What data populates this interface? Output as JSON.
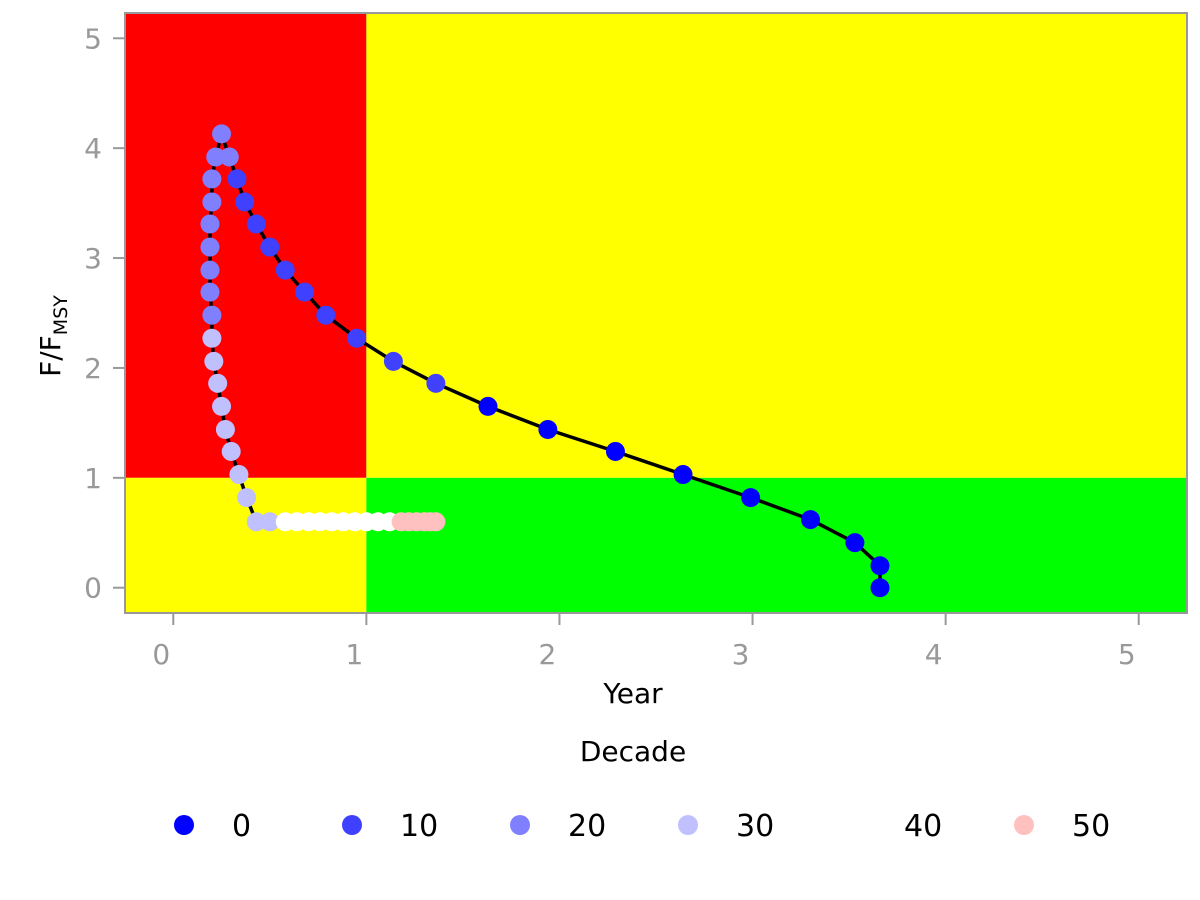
{
  "chart_data": {
    "type": "scatter",
    "xlabel": "Year",
    "ylabel": "F/F",
    "ylabel_sub": "MSY",
    "xlim": [
      -0.25,
      5.25
    ],
    "ylim": [
      -0.23,
      5.23
    ],
    "xticks": [
      0,
      1,
      2,
      3,
      4,
      5
    ],
    "yticks": [
      0,
      1,
      2,
      3,
      4,
      5
    ],
    "grid": false,
    "reference_lines": {
      "x": 1,
      "y": 1
    },
    "zones": [
      {
        "name": "upper-left",
        "color": "#ff0000"
      },
      {
        "name": "upper-right",
        "color": "#ffff00"
      },
      {
        "name": "lower-left",
        "color": "#ffff00"
      },
      {
        "name": "lower-right",
        "color": "#00ff00"
      }
    ],
    "legend": {
      "title": "Decade",
      "position": "bottom",
      "entries": [
        {
          "label": "0",
          "color": "#0000ff"
        },
        {
          "label": "10",
          "color": "#4040ff"
        },
        {
          "label": "20",
          "color": "#8080ff"
        },
        {
          "label": "30",
          "color": "#c0c0ff"
        },
        {
          "label": "40",
          "color": "#ffffff"
        },
        {
          "label": "50",
          "color": "#ffc0c0"
        }
      ]
    },
    "series": [
      {
        "decade": "0",
        "color": "#0000ff",
        "points": [
          [
            3.66,
            0.0
          ],
          [
            3.66,
            0.2
          ],
          [
            3.53,
            0.41
          ],
          [
            3.3,
            0.62
          ],
          [
            2.99,
            0.82
          ],
          [
            2.64,
            1.03
          ],
          [
            2.29,
            1.24
          ],
          [
            1.94,
            1.44
          ],
          [
            1.63,
            1.65
          ]
        ]
      },
      {
        "decade": "10",
        "color": "#4040ff",
        "points": [
          [
            1.36,
            1.86
          ],
          [
            1.14,
            2.06
          ],
          [
            0.95,
            2.27
          ],
          [
            0.79,
            2.48
          ],
          [
            0.68,
            2.69
          ],
          [
            0.58,
            2.89
          ],
          [
            0.5,
            3.1
          ],
          [
            0.43,
            3.31
          ],
          [
            0.37,
            3.51
          ],
          [
            0.33,
            3.72
          ]
        ]
      },
      {
        "decade": "20",
        "color": "#8080ff",
        "points": [
          [
            0.29,
            3.92
          ],
          [
            0.25,
            4.13
          ],
          [
            0.22,
            3.92
          ],
          [
            0.2,
            3.72
          ],
          [
            0.2,
            3.51
          ],
          [
            0.19,
            3.31
          ],
          [
            0.19,
            3.1
          ],
          [
            0.19,
            2.89
          ],
          [
            0.19,
            2.69
          ],
          [
            0.2,
            2.48
          ]
        ]
      },
      {
        "decade": "30",
        "color": "#c0c0ff",
        "points": [
          [
            0.2,
            2.27
          ],
          [
            0.21,
            2.06
          ],
          [
            0.23,
            1.86
          ],
          [
            0.25,
            1.65
          ],
          [
            0.27,
            1.44
          ],
          [
            0.3,
            1.24
          ],
          [
            0.34,
            1.03
          ],
          [
            0.38,
            0.82
          ],
          [
            0.43,
            0.6
          ],
          [
            0.5,
            0.6
          ]
        ]
      },
      {
        "decade": "40",
        "color": "#ffffff",
        "points": [
          [
            0.58,
            0.6
          ],
          [
            0.64,
            0.6
          ],
          [
            0.7,
            0.6
          ],
          [
            0.76,
            0.6
          ],
          [
            0.82,
            0.6
          ],
          [
            0.88,
            0.6
          ],
          [
            0.94,
            0.6
          ],
          [
            1.0,
            0.6
          ],
          [
            1.06,
            0.6
          ],
          [
            1.12,
            0.6
          ]
        ]
      },
      {
        "decade": "50",
        "color": "#ffc0c0",
        "points": [
          [
            1.18,
            0.6
          ],
          [
            1.22,
            0.6
          ],
          [
            1.26,
            0.6
          ],
          [
            1.3,
            0.6
          ],
          [
            1.33,
            0.6
          ],
          [
            1.36,
            0.6
          ]
        ]
      }
    ]
  }
}
